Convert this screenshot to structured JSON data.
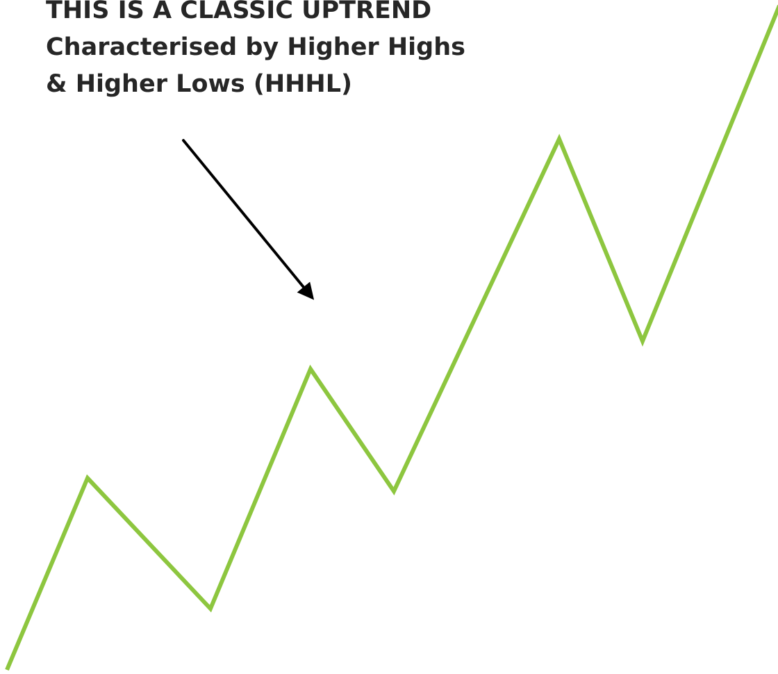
{
  "caption": {
    "line1": "THIS IS A CLASSIC UPTREND",
    "line2": "Characterised by Higher Highs",
    "line3": "& Higher Lows (HHHL)"
  },
  "colors": {
    "trend_line": "#8dc63f",
    "arrow": "#000000",
    "text": "#262626",
    "background": "#ffffff"
  }
}
